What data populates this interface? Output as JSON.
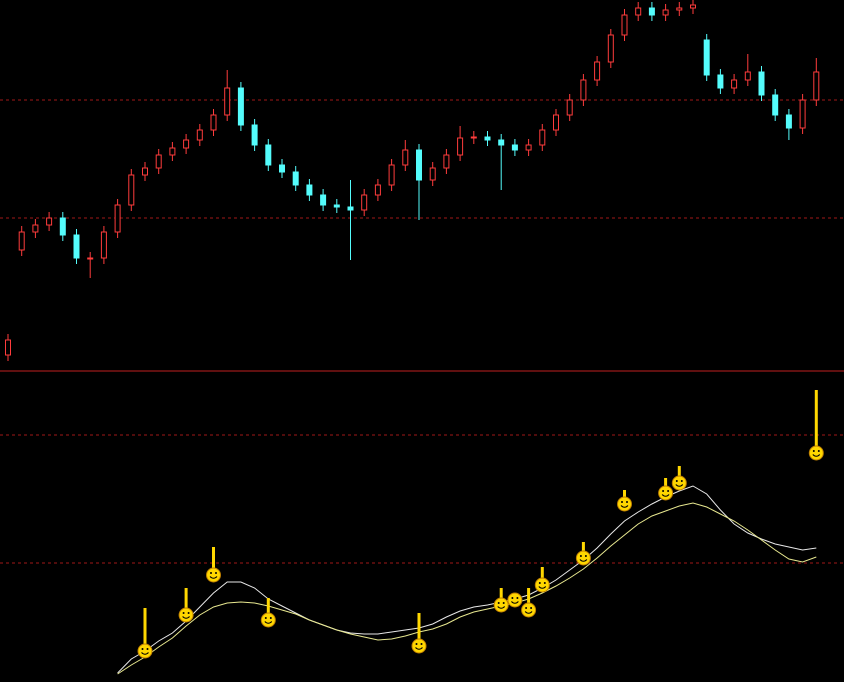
{
  "chart_data": {
    "type": "candlestick",
    "up_color": "#ff3c3c",
    "down_color": "#54fcfc",
    "grid_color": "#a01818",
    "ylim": [
      0,
      370
    ],
    "yticks": [
      152,
      270
    ],
    "open": [
      15,
      120,
      138,
      145,
      152,
      135,
      112,
      112,
      138,
      165,
      195,
      202,
      215,
      222,
      230,
      240,
      255,
      282,
      245,
      225,
      205,
      198,
      185,
      175,
      165,
      163,
      160,
      175,
      185,
      205,
      220,
      190,
      202,
      215,
      232,
      233,
      230,
      225,
      220,
      225,
      240,
      255,
      270,
      290,
      308,
      335,
      355,
      362,
      355,
      360,
      362,
      330,
      295,
      282,
      290,
      298,
      275,
      255,
      242,
      270
    ],
    "high": [
      36,
      144,
      151,
      158,
      158,
      141,
      118,
      144,
      171,
      201,
      208,
      221,
      228,
      236,
      246,
      261,
      300,
      288,
      251,
      231,
      211,
      204,
      191,
      181,
      171,
      190,
      181,
      191,
      211,
      230,
      226,
      208,
      221,
      244,
      239,
      239,
      236,
      231,
      231,
      246,
      261,
      276,
      296,
      314,
      341,
      361,
      368,
      368,
      366,
      368,
      370,
      336,
      301,
      296,
      316,
      304,
      281,
      261,
      276,
      312
    ],
    "low": [
      9,
      114,
      132,
      139,
      129,
      106,
      92,
      106,
      132,
      159,
      189,
      196,
      209,
      216,
      224,
      234,
      249,
      239,
      219,
      199,
      192,
      179,
      169,
      159,
      157,
      110,
      154,
      169,
      179,
      199,
      150,
      184,
      196,
      209,
      226,
      224,
      180,
      214,
      214,
      219,
      234,
      249,
      264,
      284,
      302,
      329,
      349,
      349,
      349,
      354,
      356,
      289,
      276,
      276,
      284,
      269,
      249,
      230,
      236,
      264
    ],
    "close": [
      30,
      138,
      145,
      152,
      135,
      112,
      112,
      138,
      165,
      195,
      202,
      215,
      222,
      230,
      240,
      255,
      282,
      245,
      225,
      205,
      198,
      185,
      175,
      165,
      163,
      160,
      175,
      185,
      205,
      220,
      190,
      202,
      215,
      232,
      233,
      230,
      225,
      220,
      225,
      240,
      255,
      270,
      290,
      308,
      335,
      355,
      362,
      355,
      360,
      362,
      365,
      295,
      282,
      290,
      298,
      275,
      255,
      242,
      270,
      298
    ],
    "indicator": {
      "type": "line",
      "y2lim": [
        0,
        310
      ],
      "y2ticks": [
        119,
        247
      ],
      "series": [
        {
          "color": "#e8e8e8",
          "values": [
            null,
            null,
            null,
            null,
            null,
            null,
            null,
            null,
            9,
            23,
            31,
            41,
            49,
            61,
            75,
            89,
            100,
            100,
            94,
            83,
            76,
            69,
            62,
            57,
            52,
            49,
            48,
            48,
            50,
            52,
            54,
            58,
            65,
            71,
            75,
            77,
            80,
            83,
            87,
            94,
            102,
            112,
            122,
            134,
            148,
            161,
            170,
            178,
            185,
            191,
            196,
            188,
            172,
            158,
            149,
            143,
            138,
            135,
            132,
            134
          ]
        },
        {
          "color": "#e8e890",
          "values": [
            null,
            null,
            null,
            null,
            null,
            null,
            null,
            null,
            8,
            17,
            25,
            35,
            44,
            56,
            67,
            75,
            79,
            80,
            79,
            76,
            72,
            68,
            62,
            57,
            52,
            48,
            45,
            42,
            43,
            46,
            50,
            53,
            58,
            65,
            70,
            73,
            76,
            79,
            83,
            89,
            96,
            104,
            113,
            124,
            136,
            147,
            158,
            166,
            171,
            176,
            179,
            175,
            168,
            161,
            152,
            142,
            132,
            123,
            120,
            125
          ]
        }
      ],
      "signal_color": "#ffd700",
      "signal_top": [
        null,
        null,
        null,
        null,
        null,
        null,
        null,
        null,
        null,
        null,
        74,
        null,
        null,
        94,
        null,
        135,
        null,
        null,
        null,
        84,
        null,
        null,
        null,
        null,
        null,
        null,
        null,
        null,
        null,
        null,
        69,
        null,
        null,
        null,
        null,
        null,
        94,
        82,
        94,
        115,
        null,
        null,
        140,
        null,
        null,
        192,
        null,
        null,
        204,
        216,
        null,
        null,
        null,
        null,
        null,
        null,
        null,
        null,
        null,
        292
      ],
      "signal_base": [
        null,
        null,
        null,
        null,
        null,
        null,
        null,
        null,
        null,
        null,
        31,
        null,
        null,
        67,
        null,
        107,
        null,
        null,
        null,
        62,
        null,
        null,
        null,
        null,
        null,
        null,
        null,
        null,
        null,
        null,
        36,
        null,
        null,
        null,
        null,
        null,
        77,
        82,
        72,
        97,
        null,
        null,
        124,
        null,
        null,
        178,
        null,
        null,
        189,
        199,
        null,
        null,
        null,
        null,
        null,
        null,
        null,
        null,
        null,
        229
      ]
    }
  }
}
